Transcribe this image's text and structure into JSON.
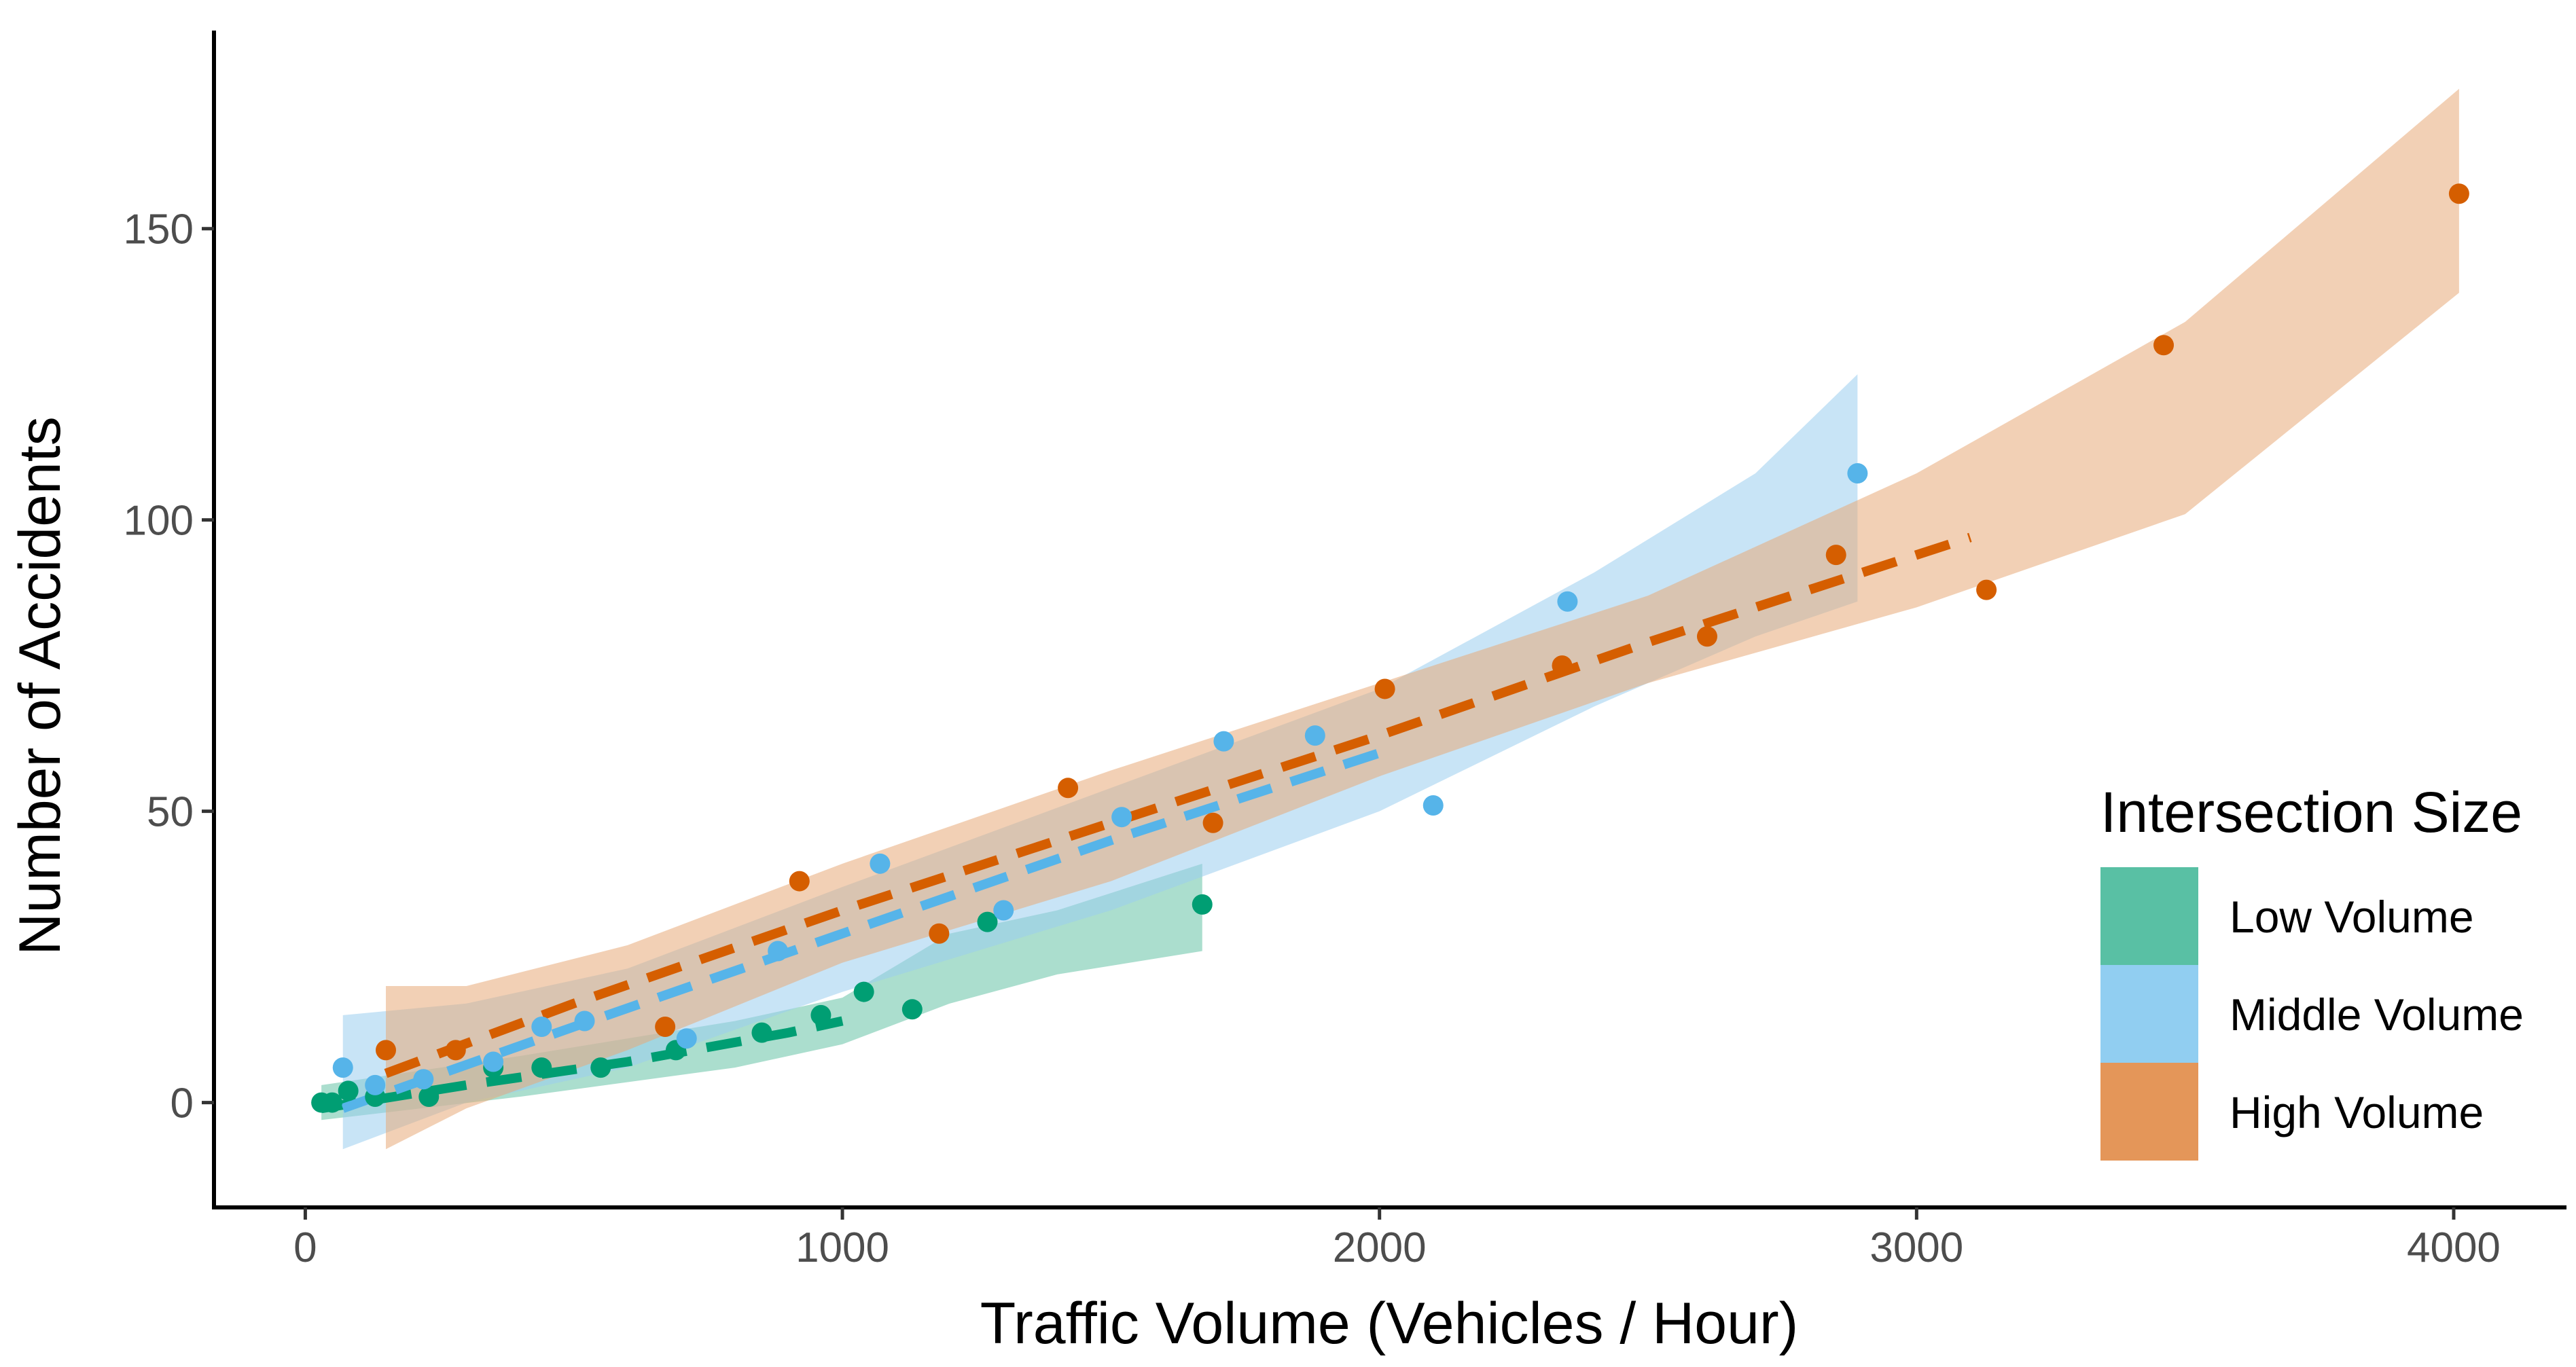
{
  "chart_data": {
    "type": "scatter",
    "title": "",
    "xlabel": "Traffic Volume (Vehicles / Hour)",
    "ylabel": "Number of Accidents",
    "xlim": [
      -170,
      4210
    ],
    "ylim": [
      -18,
      184
    ],
    "x_ticks": [
      0,
      1000,
      2000,
      3000,
      4000
    ],
    "x_tick_labels": [
      "0",
      "1000",
      "2000",
      "3000",
      "4000"
    ],
    "y_ticks": [
      0,
      50,
      100,
      150
    ],
    "y_tick_labels": [
      "0",
      "50",
      "100",
      "150"
    ],
    "grid": false,
    "legend": {
      "title": "Intersection Size",
      "placement": "right-bottom inside",
      "entries": [
        "Low Volume",
        "Middle Volume",
        "High Volume"
      ]
    },
    "series": [
      {
        "name": "Low Volume",
        "color": "#009E73",
        "fill_color": "#66C2A5",
        "points": [
          {
            "x": 30,
            "y": 0
          },
          {
            "x": 50,
            "y": 0
          },
          {
            "x": 80,
            "y": 2
          },
          {
            "x": 130,
            "y": 1
          },
          {
            "x": 230,
            "y": 1
          },
          {
            "x": 350,
            "y": 6
          },
          {
            "x": 440,
            "y": 6
          },
          {
            "x": 550,
            "y": 6
          },
          {
            "x": 690,
            "y": 9
          },
          {
            "x": 850,
            "y": 12
          },
          {
            "x": 960,
            "y": 15
          },
          {
            "x": 1040,
            "y": 19
          },
          {
            "x": 1130,
            "y": 16
          },
          {
            "x": 1270,
            "y": 31
          },
          {
            "x": 1670,
            "y": 34
          }
        ],
        "fit_line": [
          [
            30,
            -1
          ],
          [
            300,
            3
          ],
          [
            600,
            7
          ],
          [
            900,
            12
          ],
          [
            1000,
            14
          ]
        ],
        "band": [
          [
            30,
            -3,
            3
          ],
          [
            400,
            1,
            8
          ],
          [
            800,
            6,
            14
          ],
          [
            1000,
            10,
            18
          ],
          [
            1200,
            17,
            29
          ],
          [
            1400,
            22,
            33
          ],
          [
            1670,
            26,
            41
          ]
        ]
      },
      {
        "name": "Middle Volume",
        "color": "#56B4E9",
        "fill_color": "#9ACEEF",
        "points": [
          {
            "x": 70,
            "y": 6
          },
          {
            "x": 130,
            "y": 3
          },
          {
            "x": 220,
            "y": 4
          },
          {
            "x": 350,
            "y": 7
          },
          {
            "x": 440,
            "y": 13
          },
          {
            "x": 520,
            "y": 14
          },
          {
            "x": 710,
            "y": 11
          },
          {
            "x": 880,
            "y": 26
          },
          {
            "x": 1070,
            "y": 41
          },
          {
            "x": 1300,
            "y": 33
          },
          {
            "x": 1520,
            "y": 49
          },
          {
            "x": 1710,
            "y": 62
          },
          {
            "x": 1880,
            "y": 63
          },
          {
            "x": 2100,
            "y": 51
          },
          {
            "x": 2350,
            "y": 86
          },
          {
            "x": 2890,
            "y": 108
          }
        ],
        "fit_line": [
          [
            70,
            -1
          ],
          [
            500,
            13
          ],
          [
            1000,
            29
          ],
          [
            1500,
            45
          ],
          [
            2000,
            60
          ]
        ],
        "band": [
          [
            70,
            -8,
            15
          ],
          [
            300,
            0,
            17
          ],
          [
            600,
            6,
            23
          ],
          [
            1000,
            19,
            37
          ],
          [
            1500,
            33,
            54
          ],
          [
            2000,
            50,
            71
          ],
          [
            2400,
            68,
            91
          ],
          [
            2700,
            80,
            108
          ],
          [
            2890,
            86,
            125
          ]
        ]
      },
      {
        "name": "High Volume",
        "color": "#D55E00",
        "fill_color": "#E8A978",
        "points": [
          {
            "x": 150,
            "y": 9
          },
          {
            "x": 280,
            "y": 9
          },
          {
            "x": 670,
            "y": 13
          },
          {
            "x": 920,
            "y": 38
          },
          {
            "x": 1180,
            "y": 29
          },
          {
            "x": 1420,
            "y": 54
          },
          {
            "x": 1690,
            "y": 48
          },
          {
            "x": 2010,
            "y": 71
          },
          {
            "x": 2340,
            "y": 75
          },
          {
            "x": 2610,
            "y": 80
          },
          {
            "x": 2850,
            "y": 94
          },
          {
            "x": 3130,
            "y": 88
          },
          {
            "x": 3460,
            "y": 130
          },
          {
            "x": 4010,
            "y": 156
          }
        ],
        "fit_line": [
          [
            150,
            5
          ],
          [
            500,
            17
          ],
          [
            1000,
            33
          ],
          [
            1500,
            48
          ],
          [
            2000,
            63
          ],
          [
            2500,
            79
          ],
          [
            3100,
            97
          ]
        ],
        "band": [
          [
            150,
            -8,
            20
          ],
          [
            300,
            -1,
            20
          ],
          [
            600,
            9,
            27
          ],
          [
            1000,
            24,
            41
          ],
          [
            1500,
            38,
            57
          ],
          [
            2000,
            56,
            72
          ],
          [
            2500,
            72,
            87
          ],
          [
            3000,
            85,
            108
          ],
          [
            3500,
            101,
            134
          ],
          [
            4010,
            139,
            174
          ]
        ]
      }
    ]
  }
}
